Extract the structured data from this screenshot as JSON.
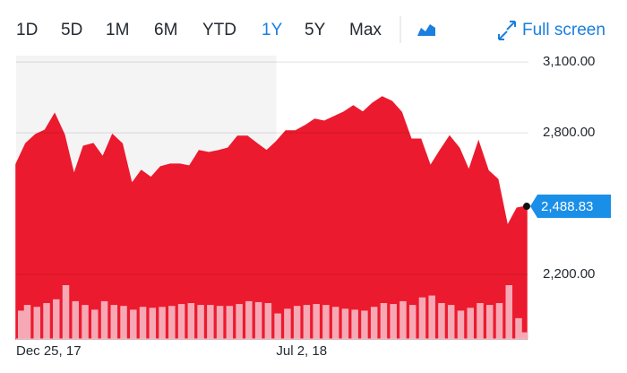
{
  "toolbar": {
    "ranges": [
      "1D",
      "5D",
      "1M",
      "6M",
      "YTD",
      "1Y",
      "5Y",
      "Max"
    ],
    "selected_range": "1Y",
    "full_screen": "Full screen"
  },
  "chart_data": {
    "type": "area",
    "categories": [
      "Dec 25, 17",
      null,
      null,
      null,
      null,
      null,
      null,
      null,
      null,
      null,
      null,
      null,
      null,
      null,
      null,
      null,
      null,
      null,
      null,
      null,
      null,
      null,
      null,
      null,
      null,
      null,
      null,
      "Jul 2, 18",
      null,
      null,
      null,
      null,
      null,
      null,
      null,
      null,
      null,
      null,
      null,
      null,
      null,
      null,
      null,
      null,
      null,
      null,
      null,
      null,
      null,
      null,
      null,
      null,
      null,
      null
    ],
    "values": [
      2667,
      2754,
      2792,
      2811,
      2880,
      2792,
      2622,
      2743,
      2754,
      2697,
      2792,
      2754,
      2584,
      2640,
      2610,
      2656,
      2667,
      2667,
      2659,
      2724,
      2716,
      2724,
      2735,
      2785,
      2785,
      2754,
      2724,
      2762,
      2808,
      2808,
      2830,
      2857,
      2849,
      2868,
      2887,
      2914,
      2887,
      2925,
      2952,
      2933,
      2887,
      2773,
      2773,
      2659,
      2724,
      2785,
      2735,
      2640,
      2762,
      2640,
      2603,
      2405,
      2481,
      2488.83
    ],
    "value_labels": [
      null,
      null,
      null,
      null,
      null,
      null,
      null,
      null,
      null,
      null,
      null,
      null,
      null,
      null,
      null,
      null,
      null,
      null,
      null,
      null,
      null,
      null,
      null,
      null,
      null,
      null,
      null,
      null,
      null,
      null,
      null,
      null,
      null,
      null,
      null,
      null,
      null,
      null,
      null,
      null,
      null,
      null,
      null,
      null,
      null,
      null,
      null,
      null,
      null,
      null,
      null,
      null,
      null,
      "2,488.83"
    ],
    "volume": [
      30,
      36,
      34,
      38,
      42,
      57,
      40,
      36,
      31,
      40,
      36,
      35,
      31,
      34,
      33,
      34,
      35,
      37,
      38,
      36,
      36,
      35,
      35,
      37,
      40,
      39,
      38,
      27,
      32,
      35,
      36,
      37,
      36,
      34,
      32,
      31,
      30,
      34,
      38,
      37,
      40,
      36,
      44,
      46,
      38,
      36,
      30,
      33,
      38,
      36,
      38,
      57,
      22,
      7
    ],
    "color": "#ec1a2e",
    "volume_color": "#f6a9b5",
    "ylim": [
      1927,
      3127
    ],
    "yticks": [
      {
        "value": 2200,
        "label": "2,200.00"
      },
      {
        "value": 2800,
        "label": "2,800.00"
      },
      {
        "value": 3100,
        "label": "3,100.00"
      }
    ],
    "grid": true
  }
}
